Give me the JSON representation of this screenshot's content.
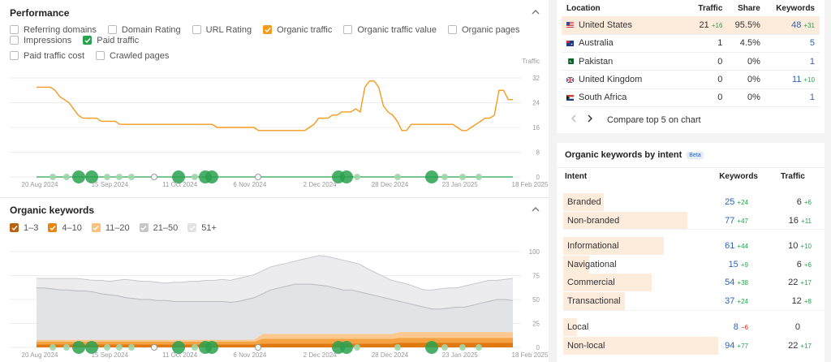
{
  "performance": {
    "title": "Performance",
    "metrics_row1": [
      {
        "label": "Referring domains",
        "checked": false,
        "color": ""
      },
      {
        "label": "Domain Rating",
        "checked": false,
        "color": ""
      },
      {
        "label": "URL Rating",
        "checked": false,
        "color": ""
      },
      {
        "label": "Organic traffic",
        "checked": true,
        "color": "#f29b1f"
      },
      {
        "label": "Organic traffic value",
        "checked": false,
        "color": ""
      },
      {
        "label": "Organic pages",
        "checked": false,
        "color": ""
      },
      {
        "label": "Impressions",
        "checked": false,
        "color": ""
      },
      {
        "label": "Paid traffic",
        "checked": true,
        "color": "#2aa14f"
      }
    ],
    "metrics_row2": [
      {
        "label": "Paid traffic cost",
        "checked": false,
        "color": ""
      },
      {
        "label": "Crawled pages",
        "checked": false,
        "color": ""
      }
    ],
    "axis_title": "Traffic",
    "y_ticks": [
      "32",
      "24",
      "16",
      "8",
      "0"
    ],
    "x_ticks": [
      "20 Aug 2024",
      "15 Sep 2024",
      "11 Oct 2024",
      "6 Nov 2024",
      "2 Dec 2024",
      "28 Dec 2024",
      "23 Jan 2025",
      "18 Feb 2025"
    ]
  },
  "chart_data": [
    {
      "type": "line",
      "title": "",
      "ylabel": "Traffic",
      "ylim": [
        0,
        32
      ],
      "series": [
        {
          "name": "Organic traffic",
          "color": "#f29b1f",
          "x_index_range": [
            0,
            100
          ],
          "values": [
            29,
            29,
            29,
            29,
            28,
            26,
            25,
            24,
            22,
            20,
            19,
            19,
            19,
            19,
            18,
            18,
            18,
            18,
            17,
            17,
            17,
            17,
            17,
            17,
            17,
            17,
            17,
            17,
            17,
            17,
            17,
            17,
            17,
            17,
            17,
            17,
            17,
            17,
            17,
            16,
            16,
            16,
            16,
            16,
            16,
            16,
            16,
            16,
            15,
            15,
            15,
            15,
            15,
            15,
            15,
            15,
            15,
            15,
            15,
            16,
            17,
            19,
            19,
            19,
            20,
            20,
            21,
            21,
            21,
            22,
            21,
            29,
            31,
            31,
            29,
            23,
            21,
            20,
            18,
            15,
            15,
            17,
            17,
            17,
            17,
            17,
            17,
            17,
            17,
            17,
            17,
            16,
            15,
            15,
            16,
            17,
            18,
            19,
            19,
            20,
            28,
            28,
            25,
            25
          ]
        },
        {
          "name": "Paid traffic",
          "color": "#2aa14f",
          "values": [
            0,
            0,
            0,
            0,
            0,
            0,
            0,
            0
          ]
        }
      ]
    },
    {
      "type": "area",
      "title": "Organic keywords",
      "ylim": [
        0,
        100
      ],
      "series": [
        {
          "name": "1–3",
          "color": "#b86110"
        },
        {
          "name": "4–10",
          "color": "#e8860a"
        },
        {
          "name": "11–20",
          "color": "#fbc07a"
        },
        {
          "name": "21–50",
          "color": "#c7c7c7"
        },
        {
          "name": "51+",
          "color": "#e2e2e2"
        }
      ]
    }
  ],
  "keywords": {
    "title": "Organic keywords",
    "legend": [
      {
        "label": "1–3",
        "class": "brown"
      },
      {
        "label": "4–10",
        "class": "dgold"
      },
      {
        "label": "11–20",
        "class": "lorange"
      },
      {
        "label": "21–50",
        "class": "grey"
      },
      {
        "label": "51+",
        "class": "lgrey"
      }
    ],
    "y_ticks": [
      "100",
      "75",
      "50",
      "25",
      "0"
    ],
    "x_ticks": [
      "20 Aug 2024",
      "15 Sep 2024",
      "11 Oct 2024",
      "6 Nov 2024",
      "2 Dec 2024",
      "28 Dec 2024",
      "23 Jan 2025",
      "18 Feb 2025"
    ]
  },
  "location": {
    "headers": [
      "Location",
      "Traffic",
      "Share",
      "Keywords"
    ],
    "rows": [
      {
        "country": "United States",
        "flag": "us",
        "traffic": "21",
        "traffic_delta": "+16",
        "share": "95.5%",
        "keywords": "48",
        "kw_delta": "+31"
      },
      {
        "country": "Australia",
        "flag": "au",
        "traffic": "1",
        "traffic_delta": "",
        "share": "4.5%",
        "keywords": "5",
        "kw_delta": ""
      },
      {
        "country": "Pakistan",
        "flag": "pk",
        "traffic": "0",
        "traffic_delta": "",
        "share": "0%",
        "keywords": "1",
        "kw_delta": ""
      },
      {
        "country": "United Kingdom",
        "flag": "gb",
        "traffic": "0",
        "traffic_delta": "",
        "share": "0%",
        "keywords": "11",
        "kw_delta": "+10"
      },
      {
        "country": "South Africa",
        "flag": "za",
        "traffic": "0",
        "traffic_delta": "",
        "share": "0%",
        "keywords": "1",
        "kw_delta": ""
      }
    ],
    "compare_label": "Compare top 5 on chart"
  },
  "intent": {
    "title": "Organic keywords by intent",
    "badge": "Beta",
    "headers": [
      "Intent",
      "Keywords",
      "Traffic"
    ],
    "groups": [
      [
        {
          "name": "Branded",
          "kw": "25",
          "kw_delta": "+24",
          "kw_delta_type": "up",
          "tr": "6",
          "tr_delta": "+6",
          "bar": 0.24
        },
        {
          "name": "Non-branded",
          "kw": "77",
          "kw_delta": "+47",
          "kw_delta_type": "up",
          "tr": "16",
          "tr_delta": "+11",
          "bar": 0.73
        }
      ],
      [
        {
          "name": "Informational",
          "kw": "61",
          "kw_delta": "+44",
          "kw_delta_type": "up",
          "tr": "10",
          "tr_delta": "+10",
          "bar": 0.59
        },
        {
          "name": "Navigational",
          "kw": "15",
          "kw_delta": "+9",
          "kw_delta_type": "up",
          "tr": "6",
          "tr_delta": "+6",
          "bar": 0.15
        },
        {
          "name": "Commercial",
          "kw": "54",
          "kw_delta": "+38",
          "kw_delta_type": "up",
          "tr": "22",
          "tr_delta": "+17",
          "bar": 0.52
        },
        {
          "name": "Transactional",
          "kw": "37",
          "kw_delta": "+24",
          "kw_delta_type": "up",
          "tr": "12",
          "tr_delta": "+8",
          "bar": 0.36
        }
      ],
      [
        {
          "name": "Local",
          "kw": "8",
          "kw_delta": "−6",
          "kw_delta_type": "down",
          "tr": "0",
          "tr_delta": "",
          "bar": 0.08
        },
        {
          "name": "Non-local",
          "kw": "94",
          "kw_delta": "+77",
          "kw_delta_type": "up",
          "tr": "22",
          "tr_delta": "+17",
          "bar": 0.91
        }
      ]
    ]
  }
}
